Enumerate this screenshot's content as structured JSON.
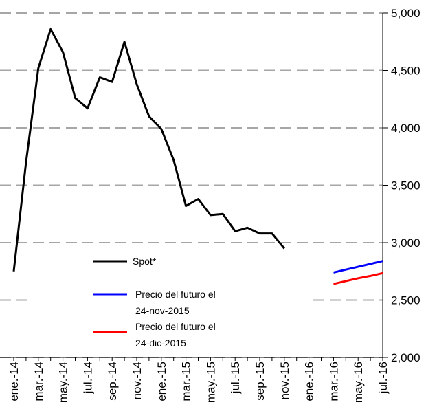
{
  "chart_data": {
    "type": "line",
    "categories": [
      "ene.-14",
      null,
      "mar.-14",
      null,
      "may.-14",
      null,
      "jul.-14",
      null,
      "sep.-14",
      null,
      "nov.-14",
      null,
      "ene.-15",
      null,
      "mar.-15",
      null,
      "may.-15",
      null,
      "jul.-15",
      null,
      "sep.-15",
      null,
      "nov.-15",
      null,
      "ene.-16",
      null,
      "mar.-16",
      null,
      "may.-16",
      null,
      "jul.-16"
    ],
    "series": [
      {
        "name": "Spot*",
        "color": "#000000",
        "values": [
          2750,
          3700,
          4520,
          4860,
          4660,
          4260,
          4170,
          4440,
          4400,
          4750,
          4380,
          4100,
          3990,
          3720,
          3320,
          3380,
          3240,
          3250,
          3100,
          3130,
          3080,
          3080,
          2950,
          null,
          null,
          null,
          null,
          null,
          null,
          null,
          null
        ]
      },
      {
        "name": "Precio del futuro el\n24-nov-2015",
        "color": "#0000ff",
        "values": [
          null,
          null,
          null,
          null,
          null,
          null,
          null,
          null,
          null,
          null,
          null,
          null,
          null,
          null,
          null,
          null,
          null,
          null,
          null,
          null,
          null,
          null,
          null,
          null,
          null,
          null,
          2740,
          2765,
          2790,
          2815,
          2840
        ]
      },
      {
        "name": "Precio del futuro el\n24-dic-2015",
        "color": "#ff0000",
        "values": [
          null,
          null,
          null,
          null,
          null,
          null,
          null,
          null,
          null,
          null,
          null,
          null,
          null,
          null,
          null,
          null,
          null,
          null,
          null,
          null,
          null,
          null,
          null,
          null,
          null,
          null,
          2640,
          2665,
          2690,
          2710,
          2735
        ]
      }
    ],
    "ylim": [
      2000,
      5000
    ],
    "yticks": [
      {
        "value": 2000,
        "label": "2,000"
      },
      {
        "value": 2500,
        "label": "2,500"
      },
      {
        "value": 3000,
        "label": "3,000"
      },
      {
        "value": 3500,
        "label": "3,500"
      },
      {
        "value": 4000,
        "label": "4,000"
      },
      {
        "value": 4500,
        "label": "4,500"
      },
      {
        "value": 5000,
        "label": "5,000"
      }
    ],
    "grid": true,
    "y_axis_side": "right"
  }
}
